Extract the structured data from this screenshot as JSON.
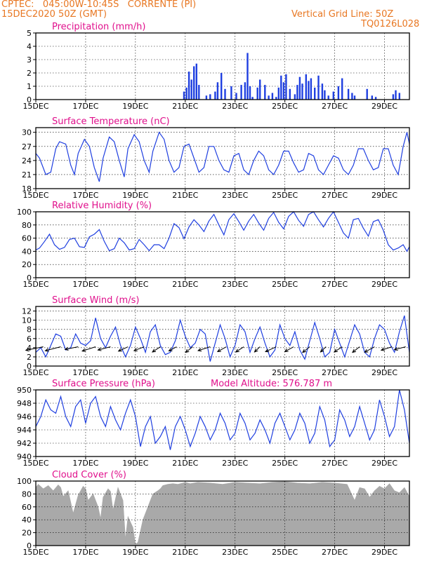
{
  "header": {
    "line1": "CPTEC:   045:00W-10:45S   CORRENTE (PI)",
    "line2": "15DEC2020 50Z (GMT)",
    "grid_note": "Vertical Grid Line: 50Z",
    "code": "TQ0126L028"
  },
  "colors": {
    "header": "#e87722",
    "panel_title": "#e0108c",
    "series": "#1f3fe0",
    "cloud": "#a9a9a9",
    "wind_arrow": "#000000",
    "grid": "#000000"
  },
  "x_ticks": [
    "15DEC",
    "17DEC",
    "19DEC",
    "21DEC",
    "23DEC",
    "25DEC",
    "27DEC",
    "29DEC"
  ],
  "x_tick_days": [
    0,
    2,
    4,
    6,
    8,
    10,
    12,
    14
  ],
  "x_range_days": [
    0,
    15
  ],
  "chart_data": [
    {
      "type": "bar",
      "title": "Precipitation (mm/h)",
      "ylim": [
        0,
        5
      ],
      "yticks": [
        "0",
        "1",
        "2",
        "3",
        "4",
        "5"
      ],
      "grid": true,
      "x_days": [
        5.95,
        6.05,
        6.15,
        6.25,
        6.35,
        6.45,
        6.55,
        6.85,
        7.0,
        7.2,
        7.3,
        7.45,
        7.6,
        7.85,
        8.05,
        8.25,
        8.4,
        8.5,
        8.6,
        8.7,
        8.9,
        9.0,
        9.2,
        9.35,
        9.5,
        9.65,
        9.75,
        9.85,
        9.95,
        10.05,
        10.2,
        10.4,
        10.5,
        10.6,
        10.7,
        10.85,
        10.95,
        11.05,
        11.2,
        11.35,
        11.5,
        11.6,
        11.75,
        11.95,
        12.15,
        12.3,
        12.55,
        12.7,
        12.8,
        13.3,
        13.5,
        13.65,
        14.35,
        14.45,
        14.6
      ],
      "values": [
        0.6,
        0.9,
        2.1,
        1.5,
        2.5,
        2.7,
        1.1,
        0.3,
        0.4,
        0.6,
        1.3,
        2.0,
        0.8,
        1.0,
        0.5,
        1.1,
        1.3,
        3.5,
        1.0,
        0.2,
        0.9,
        1.5,
        1.1,
        0.3,
        0.5,
        0.2,
        0.9,
        1.8,
        1.3,
        1.9,
        0.8,
        0.4,
        1.1,
        1.7,
        1.2,
        1.9,
        1.4,
        1.6,
        0.9,
        1.8,
        1.2,
        0.7,
        0.3,
        0.6,
        1.0,
        1.6,
        0.8,
        0.5,
        0.3,
        0.8,
        0.3,
        0.2,
        0.4,
        0.7,
        0.5
      ]
    },
    {
      "type": "line",
      "title": "Surface Temperature (nC)",
      "ylim": [
        18,
        31
      ],
      "yticks": [
        "18",
        "21",
        "24",
        "27",
        "30"
      ],
      "grid": true,
      "series": [
        {
          "x_days": [
            0,
            0.15,
            0.4,
            0.6,
            0.8,
            0.95,
            1.2,
            1.4,
            1.55,
            1.7,
            1.95,
            2.15,
            2.35,
            2.55,
            2.7,
            2.95,
            3.15,
            3.35,
            3.55,
            3.7,
            3.95,
            4.15,
            4.35,
            4.55,
            4.7,
            4.95,
            5.15,
            5.35,
            5.55,
            5.75,
            5.95,
            6.15,
            6.35,
            6.55,
            6.75,
            6.95,
            7.15,
            7.35,
            7.55,
            7.75,
            7.95,
            8.15,
            8.35,
            8.55,
            8.75,
            8.95,
            9.15,
            9.35,
            9.55,
            9.75,
            9.95,
            10.15,
            10.35,
            10.55,
            10.75,
            10.95,
            11.15,
            11.35,
            11.55,
            11.75,
            11.95,
            12.15,
            12.35,
            12.55,
            12.75,
            12.95,
            13.15,
            13.35,
            13.55,
            13.75,
            13.95,
            14.15,
            14.35,
            14.55,
            14.75,
            14.9,
            15.0
          ],
          "values": [
            25.5,
            24.5,
            21.0,
            21.5,
            26.5,
            28.0,
            27.5,
            23.0,
            21.0,
            25.5,
            28.5,
            27.0,
            22.5,
            19.5,
            24.5,
            29.0,
            28.0,
            24.0,
            20.5,
            26.5,
            29.5,
            28.0,
            24.0,
            21.5,
            26.0,
            30.0,
            28.5,
            24.0,
            21.5,
            22.5,
            27.0,
            27.5,
            24.5,
            21.5,
            22.5,
            27.0,
            27.0,
            24.0,
            22.0,
            21.5,
            25.0,
            25.5,
            22.0,
            21.0,
            24.0,
            26.0,
            25.0,
            22.0,
            21.0,
            23.0,
            26.0,
            26.0,
            23.5,
            21.5,
            22.0,
            25.5,
            25.0,
            22.0,
            21.0,
            23.0,
            25.0,
            24.5,
            22.0,
            21.0,
            23.0,
            26.5,
            26.5,
            24.0,
            22.0,
            22.5,
            26.5,
            26.5,
            23.0,
            21.0,
            27.0,
            30.0,
            27.5
          ]
        }
      ]
    },
    {
      "type": "line",
      "title": "Relative Humidity (%)",
      "ylim": [
        0,
        100
      ],
      "yticks": [
        "0",
        "20",
        "40",
        "60",
        "80",
        "100"
      ],
      "grid": true,
      "series": [
        {
          "x_days": [
            0,
            0.15,
            0.35,
            0.55,
            0.75,
            0.95,
            1.15,
            1.35,
            1.55,
            1.75,
            1.95,
            2.15,
            2.35,
            2.55,
            2.75,
            2.95,
            3.15,
            3.35,
            3.55,
            3.75,
            3.95,
            4.15,
            4.35,
            4.55,
            4.75,
            4.95,
            5.15,
            5.35,
            5.55,
            5.75,
            5.95,
            6.15,
            6.35,
            6.55,
            6.75,
            6.95,
            7.15,
            7.35,
            7.55,
            7.75,
            7.95,
            8.15,
            8.35,
            8.55,
            8.75,
            8.95,
            9.15,
            9.35,
            9.55,
            9.75,
            9.95,
            10.15,
            10.35,
            10.55,
            10.75,
            10.95,
            11.15,
            11.35,
            11.55,
            11.75,
            11.95,
            12.15,
            12.35,
            12.55,
            12.75,
            12.95,
            13.15,
            13.35,
            13.55,
            13.75,
            13.95,
            14.15,
            14.35,
            14.55,
            14.75,
            14.9,
            15.0
          ],
          "values": [
            42,
            45,
            55,
            66,
            50,
            43,
            46,
            58,
            60,
            47,
            46,
            62,
            66,
            73,
            55,
            41,
            44,
            60,
            53,
            42,
            44,
            58,
            50,
            41,
            50,
            50,
            44,
            60,
            82,
            76,
            59,
            77,
            88,
            80,
            70,
            86,
            96,
            80,
            65,
            88,
            97,
            85,
            72,
            86,
            96,
            83,
            72,
            90,
            99,
            84,
            74,
            93,
            100,
            87,
            78,
            96,
            100,
            88,
            77,
            90,
            100,
            84,
            68,
            60,
            88,
            90,
            75,
            63,
            85,
            88,
            72,
            50,
            42,
            45,
            50,
            40,
            47
          ]
        }
      ]
    },
    {
      "type": "line",
      "title": "Surface Wind (m/s)",
      "ylim": [
        0,
        13
      ],
      "yticks": [
        "0",
        "2",
        "4",
        "6",
        "8",
        "10",
        "12"
      ],
      "grid": true,
      "series": [
        {
          "x_days": [
            0,
            0.2,
            0.4,
            0.6,
            0.8,
            1.0,
            1.2,
            1.4,
            1.6,
            1.8,
            2.0,
            2.2,
            2.4,
            2.6,
            2.8,
            3.0,
            3.2,
            3.4,
            3.6,
            3.8,
            4.0,
            4.2,
            4.4,
            4.6,
            4.8,
            5.0,
            5.2,
            5.4,
            5.6,
            5.8,
            6.0,
            6.2,
            6.4,
            6.6,
            6.8,
            7.0,
            7.2,
            7.4,
            7.6,
            7.8,
            8.0,
            8.2,
            8.4,
            8.6,
            8.8,
            9.0,
            9.2,
            9.4,
            9.6,
            9.8,
            10.0,
            10.2,
            10.4,
            10.6,
            10.8,
            11.0,
            11.2,
            11.4,
            11.6,
            11.8,
            12.0,
            12.2,
            12.4,
            12.6,
            12.8,
            13.0,
            13.2,
            13.4,
            13.6,
            13.8,
            14.0,
            14.2,
            14.4,
            14.6,
            14.8,
            15.0
          ],
          "values": [
            3.0,
            4.0,
            2.0,
            4.5,
            7.0,
            6.5,
            3.5,
            4.0,
            7.0,
            5.0,
            4.5,
            5.5,
            10.5,
            6.0,
            4.0,
            6.5,
            8.5,
            4.5,
            2.0,
            4.5,
            8.5,
            6.0,
            3.0,
            7.5,
            9.0,
            4.5,
            2.5,
            3.0,
            5.5,
            10.0,
            6.5,
            4.0,
            5.0,
            8.0,
            7.0,
            1.0,
            5.0,
            9.0,
            6.0,
            2.0,
            4.5,
            9.0,
            7.5,
            3.0,
            6.0,
            8.5,
            5.0,
            2.0,
            3.5,
            9.0,
            6.0,
            4.5,
            7.5,
            3.5,
            1.5,
            5.5,
            9.5,
            6.0,
            2.0,
            3.0,
            8.0,
            5.0,
            2.0,
            5.5,
            9.0,
            7.0,
            3.0,
            2.0,
            6.0,
            9.0,
            8.0,
            5.0,
            3.0,
            7.5,
            11.0,
            3.0
          ]
        }
      ],
      "wind_arrows": {
        "x_days": [
          0.3,
          1.0,
          1.7,
          2.4,
          3.0,
          3.7,
          4.35,
          5.0,
          5.65,
          6.3,
          7.0,
          7.65,
          8.35,
          9.0,
          9.65,
          10.35,
          11.0,
          11.65,
          12.3,
          13.0,
          13.6,
          14.3,
          14.85
        ],
        "speed": [
          6,
          5.5,
          4.5,
          5,
          4.5,
          4,
          4,
          4,
          3.5,
          4,
          4.5,
          4,
          4,
          3.5,
          4.5,
          4,
          4,
          3.5,
          4,
          4,
          4.5,
          4,
          4
        ],
        "direction_deg": [
          70,
          65,
          70,
          60,
          65,
          50,
          55,
          40,
          45,
          35,
          60,
          45,
          40,
          30,
          50,
          45,
          35,
          30,
          40,
          35,
          45,
          60,
          65
        ]
      }
    },
    {
      "type": "line",
      "title": "Surface Pressure (hPa)",
      "annotation": "Model Altitude: 576.787  m",
      "ylim": [
        940,
        950
      ],
      "yticks": [
        "940",
        "942",
        "944",
        "946",
        "948",
        "950"
      ],
      "grid": true,
      "series": [
        {
          "x_days": [
            0,
            0.2,
            0.4,
            0.6,
            0.8,
            1.0,
            1.2,
            1.4,
            1.6,
            1.8,
            2.0,
            2.2,
            2.4,
            2.6,
            2.8,
            3.0,
            3.2,
            3.4,
            3.6,
            3.8,
            4.0,
            4.2,
            4.4,
            4.6,
            4.8,
            5.0,
            5.2,
            5.4,
            5.6,
            5.8,
            6.0,
            6.2,
            6.4,
            6.6,
            6.8,
            7.0,
            7.2,
            7.4,
            7.6,
            7.8,
            8.0,
            8.2,
            8.4,
            8.6,
            8.8,
            9.0,
            9.2,
            9.4,
            9.6,
            9.8,
            10.0,
            10.2,
            10.4,
            10.6,
            10.8,
            11.0,
            11.2,
            11.4,
            11.6,
            11.8,
            12.0,
            12.2,
            12.4,
            12.6,
            12.8,
            13.0,
            13.2,
            13.4,
            13.6,
            13.8,
            14.0,
            14.2,
            14.4,
            14.6,
            14.8,
            15.0
          ],
          "values": [
            944.5,
            946.0,
            948.5,
            947.0,
            946.5,
            949.0,
            946.0,
            944.5,
            947.5,
            948.5,
            945.0,
            948.0,
            949.0,
            946.0,
            944.5,
            947.5,
            945.5,
            944.0,
            946.5,
            948.5,
            946.0,
            941.5,
            944.5,
            946.0,
            942.0,
            943.0,
            944.5,
            941.0,
            944.5,
            946.0,
            944.0,
            941.5,
            943.5,
            946.0,
            944.5,
            942.5,
            944.0,
            946.5,
            945.0,
            942.5,
            943.5,
            946.5,
            945.0,
            942.5,
            943.5,
            945.5,
            944.0,
            942.0,
            945.0,
            946.5,
            944.5,
            942.5,
            944.0,
            946.5,
            945.0,
            942.0,
            943.5,
            947.5,
            945.5,
            941.5,
            942.5,
            947.0,
            945.5,
            943.0,
            944.5,
            947.5,
            945.0,
            942.5,
            944.0,
            948.5,
            946.0,
            943.0,
            944.5,
            950.0,
            947.0,
            942.0
          ]
        }
      ]
    },
    {
      "type": "area",
      "title": "Cloud Cover (%)",
      "ylim": [
        0,
        100
      ],
      "yticks": [
        "0",
        "20",
        "40",
        "60",
        "80",
        "100"
      ],
      "grid": true,
      "series": [
        {
          "x_days": [
            0,
            0.1,
            0.3,
            0.5,
            0.7,
            0.9,
            1.0,
            1.1,
            1.3,
            1.5,
            1.7,
            1.9,
            2.0,
            2.1,
            2.3,
            2.5,
            2.6,
            2.7,
            2.9,
            3.0,
            3.1,
            3.3,
            3.5,
            3.6,
            3.7,
            3.9,
            4.0,
            4.1,
            4.3,
            4.5,
            4.6,
            4.7,
            4.9,
            5.0,
            5.1,
            5.3,
            5.5,
            5.7,
            5.9,
            6.0,
            6.2,
            6.5,
            7.0,
            7.5,
            8.0,
            8.5,
            9.0,
            9.5,
            10.0,
            10.5,
            11.0,
            11.5,
            12.0,
            12.5,
            12.8,
            13.0,
            13.2,
            13.4,
            13.6,
            13.8,
            14.0,
            14.2,
            14.4,
            14.6,
            14.8,
            15.0
          ],
          "values": [
            90,
            95,
            88,
            93,
            85,
            94,
            90,
            76,
            85,
            50,
            78,
            92,
            88,
            70,
            80,
            60,
            42,
            75,
            88,
            84,
            55,
            90,
            70,
            10,
            45,
            28,
            2,
            5,
            40,
            60,
            70,
            80,
            85,
            88,
            93,
            95,
            96,
            95,
            97,
            98,
            96,
            98,
            97,
            95,
            98,
            97,
            96,
            98,
            99,
            97,
            96,
            98,
            97,
            95,
            70,
            90,
            88,
            75,
            85,
            92,
            88,
            96,
            85,
            82,
            90,
            76
          ]
        }
      ]
    }
  ]
}
